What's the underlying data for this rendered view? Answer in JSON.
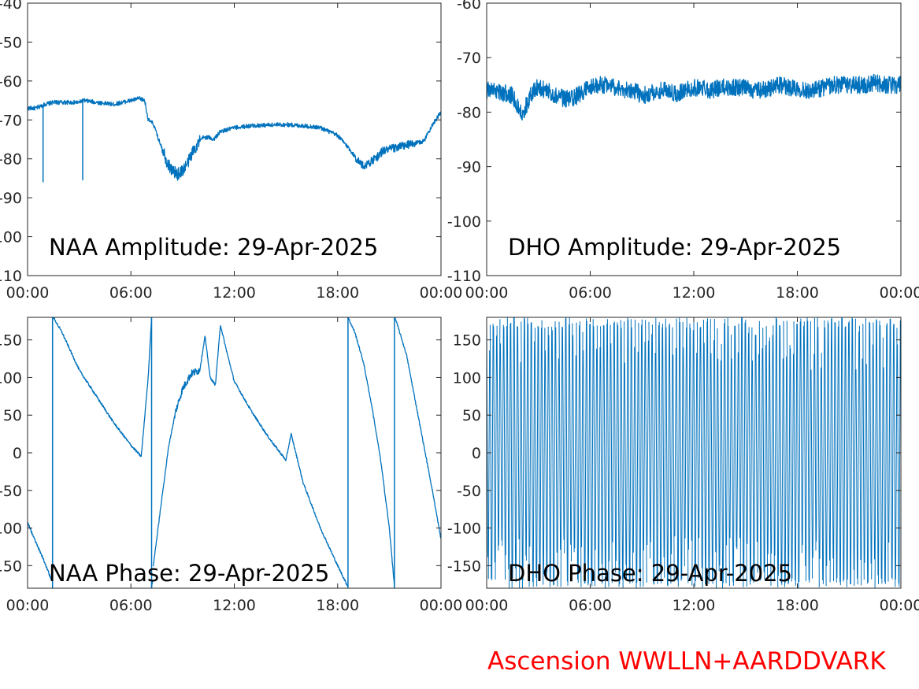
{
  "figure": {
    "footer": "Ascension WWLLN+AARDDVARK",
    "footer_color": "#ff0000",
    "line_color": "#0072bd"
  },
  "chart_data": [
    {
      "type": "line",
      "title": "NAA Amplitude: 29-Apr-2025",
      "xlabel": "",
      "ylabel": "",
      "xlim": [
        0,
        24
      ],
      "ylim": [
        -110,
        -40
      ],
      "x_tick_labels": [
        "00:00",
        "06:00",
        "12:00",
        "18:00",
        "00:00"
      ],
      "y_tick_labels": [
        "-40",
        "-50",
        "-60",
        "-70",
        "-80",
        "-90",
        "-100",
        "-110"
      ],
      "series": [
        {
          "x": [
            0,
            0.5,
            1,
            1.5,
            2,
            3,
            3.2,
            4,
            5,
            6,
            6.5,
            6.8,
            7,
            7.3,
            7.6,
            7.9,
            8.1,
            8.4,
            8.7,
            9,
            9.3,
            9.6,
            9.9,
            10.2,
            10.5,
            10.8,
            11.2,
            11.6,
            12,
            13,
            14,
            15,
            16,
            17,
            18,
            18.6,
            19.1,
            19.5,
            19.8,
            20.2,
            20.6,
            21,
            22,
            23,
            23.4,
            23.7,
            24
          ],
          "y": [
            -67,
            -67,
            -66,
            -65.5,
            -65.5,
            -65.5,
            -65,
            -65.5,
            -66,
            -65,
            -64.5,
            -65,
            -70,
            -71,
            -75,
            -78,
            -81,
            -83,
            -84,
            -83,
            -81,
            -78,
            -76,
            -74.5,
            -74.5,
            -75,
            -73,
            -72.5,
            -72,
            -71.5,
            -71.3,
            -71.2,
            -71.5,
            -72,
            -74,
            -77,
            -80,
            -82,
            -81,
            -80,
            -78,
            -77.5,
            -76.5,
            -75.5,
            -72,
            -70,
            -68
          ],
          "spikes": [
            {
              "x": 0.9,
              "y": -86
            },
            {
              "x": 3.2,
              "y": -85.5
            }
          ]
        }
      ]
    },
    {
      "type": "line",
      "title": "DHO Amplitude: 29-Apr-2025",
      "xlabel": "",
      "ylabel": "",
      "xlim": [
        0,
        24
      ],
      "ylim": [
        -110,
        -60
      ],
      "x_tick_labels": [
        "00:00",
        "06:00",
        "12:00",
        "18:00",
        "00:00"
      ],
      "y_tick_labels": [
        "-60",
        "-70",
        "-80",
        "-90",
        "-100",
        "-110"
      ],
      "series": [
        {
          "x": [
            0,
            0.5,
            1,
            1.5,
            1.8,
            2.1,
            2.4,
            2.7,
            3,
            3.5,
            4,
            4.5,
            5,
            5.5,
            6,
            6.5,
            7,
            7.5,
            8,
            8.5,
            9,
            9.5,
            10,
            10.5,
            11,
            11.5,
            12,
            12.5,
            13,
            13.5,
            14,
            14.5,
            15,
            15.5,
            16,
            16.5,
            17,
            17.5,
            18,
            18.5,
            19,
            19.5,
            20,
            20.5,
            21,
            21.5,
            22,
            22.5,
            23,
            23.5,
            24
          ],
          "y": [
            -76,
            -76,
            -76.5,
            -77,
            -79,
            -80,
            -78,
            -76,
            -75.5,
            -76,
            -77,
            -77.5,
            -77.5,
            -76.5,
            -75.5,
            -75,
            -75,
            -75.5,
            -76,
            -76,
            -77,
            -76.5,
            -76,
            -76,
            -76.5,
            -76,
            -75.5,
            -75.5,
            -76,
            -75.5,
            -75.5,
            -75.5,
            -75.5,
            -76,
            -76,
            -75.5,
            -75,
            -75.5,
            -75.5,
            -76,
            -76,
            -75.5,
            -75,
            -75,
            -75,
            -75,
            -75,
            -74.5,
            -75,
            -75,
            -75
          ]
        }
      ]
    },
    {
      "type": "line",
      "title": "NAA Phase: 29-Apr-2025",
      "xlabel": "",
      "ylabel": "",
      "xlim": [
        0,
        24
      ],
      "ylim": [
        -180,
        180
      ],
      "x_tick_labels": [
        "00:00",
        "06:00",
        "12:00",
        "18:00",
        "00:00"
      ],
      "y_tick_labels": [
        "150",
        "100",
        "50",
        "0",
        "-50",
        "-100",
        "-150"
      ],
      "series": [
        {
          "segments": [
            {
              "x": [
                0,
                0.4,
                0.8,
                1.2,
                1.4
              ],
              "y": [
                -92,
                -115,
                -135,
                -158,
                -170
              ]
            },
            {
              "x": [
                1.5,
                2,
                3,
                4,
                5,
                6,
                6.6
              ],
              "y": [
                180,
                160,
                110,
                75,
                40,
                10,
                -5
              ]
            },
            {
              "x": [
                6.6,
                7,
                7.2
              ],
              "y": [
                -5,
                100,
                180
              ]
            },
            {
              "x": [
                7.2,
                7.25
              ],
              "y": [
                -180,
                -170
              ]
            },
            {
              "x": [
                7.3,
                7.8,
                8.2,
                8.6,
                9,
                9.5,
                10,
                10.3,
                10.6,
                10.9,
                11.2,
                11.5,
                12,
                13,
                14,
                15
              ],
              "y": [
                -150,
                -60,
                10,
                55,
                85,
                105,
                110,
                155,
                100,
                90,
                170,
                140,
                95,
                55,
                20,
                -10
              ]
            },
            {
              "x": [
                15,
                15.3,
                16,
                17,
                18,
                18.6
              ],
              "y": [
                -10,
                25,
                -40,
                -100,
                -150,
                -178
              ]
            },
            {
              "x": [
                18.6,
                18.7,
                19,
                19.5,
                20,
                20.5,
                21,
                21.3
              ],
              "y": [
                180,
                175,
                160,
                120,
                60,
                -10,
                -100,
                -178
              ]
            },
            {
              "x": [
                21.3,
                21.4,
                22,
                22.5,
                23,
                23.5,
                24
              ],
              "y": [
                180,
                175,
                130,
                70,
                10,
                -50,
                -115
              ]
            }
          ]
        }
      ]
    },
    {
      "type": "line",
      "title": "DHO Phase: 29-Apr-2025",
      "xlabel": "",
      "ylabel": "",
      "xlim": [
        0,
        24
      ],
      "ylim": [
        -180,
        180
      ],
      "x_tick_labels": [
        "00:00",
        "06:00",
        "12:00",
        "18:00",
        "00:00"
      ],
      "y_tick_labels": [
        "150",
        "100",
        "50",
        "0",
        "-50",
        "-100",
        "-150"
      ],
      "series": [
        {
          "pattern": "dense phase wrapping between -180 and 180",
          "wrap_count": 240
        }
      ]
    }
  ]
}
